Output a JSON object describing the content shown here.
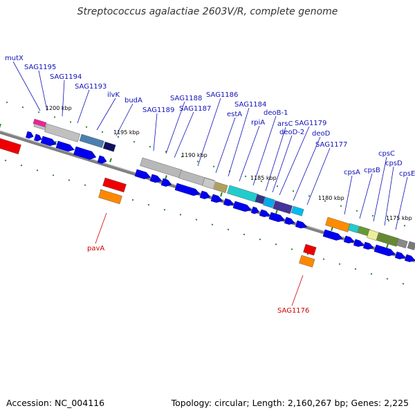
{
  "title": "Streptococcus agalactiae 2603V/R, complete genome",
  "accession": "Accession: NC_004116",
  "topology": "Topology: circular; Length: 2,160,267 bp; Genes: 2,225",
  "map": {
    "kbp_ticks": [
      "1200 kbp",
      "1195 kbp",
      "1190 kbp",
      "1185 kbp",
      "1180 kbp",
      "1175 kbp"
    ],
    "colors": {
      "cds": "#0000ee",
      "rna_red": "#ee0000",
      "rna_orange": "#ff8800",
      "backbone": "#808080",
      "tick": "#228822",
      "label_blue": "#1010b8",
      "label_red": "#cc0000"
    },
    "blue_labels": [
      "mutX",
      "SAG1195",
      "SAG1194",
      "SAG1193",
      "ilvK",
      "budA",
      "SAG1189",
      "SAG1188",
      "SAG1187",
      "SAG1186",
      "estA",
      "SAG1184",
      "rpiA",
      "deoB-1",
      "arsC",
      "SAG1179",
      "deoD-2",
      "deoD",
      "SAG1177",
      "cpsA",
      "cpsB",
      "cpsC",
      "cpsD",
      "cpsE"
    ],
    "red_labels": [
      "pavA",
      "SAG1176"
    ]
  }
}
